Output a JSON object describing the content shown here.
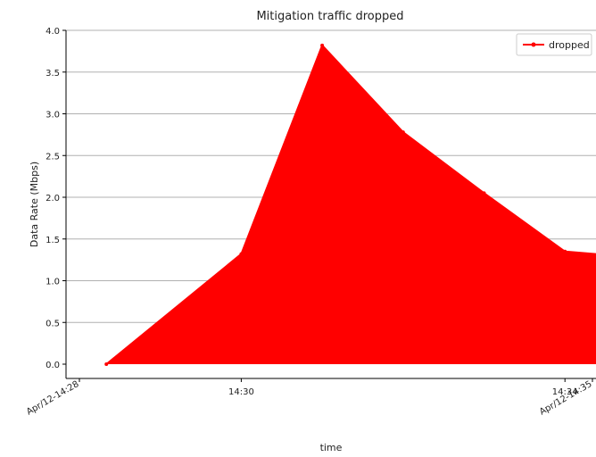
{
  "chart_data": {
    "type": "area",
    "title": "Mitigation traffic dropped",
    "xlabel": "time",
    "ylabel": "Data Rate (Mbps)",
    "ylim": [
      0,
      4.0
    ],
    "grid": "horizontal",
    "legend_position": "top-right",
    "x_range": [
      "Apr/12-14:28",
      "Apr/12-14:35"
    ],
    "x_ticks": [
      {
        "value": "Apr/12-14:28",
        "label": "Apr/12-14:28",
        "rotated": true
      },
      {
        "value": "Apr/12-14:30",
        "label": "14:30",
        "rotated": false
      },
      {
        "value": "Apr/12-14:34",
        "label": "14:34",
        "rotated": false
      },
      {
        "value": "Apr/12-14:35",
        "label": "Apr/12-14:35",
        "rotated": true
      }
    ],
    "y_ticks": [
      0.0,
      0.5,
      1.0,
      1.5,
      2.0,
      2.5,
      3.0,
      3.5,
      4.0
    ],
    "y_tick_labels": [
      "0.0",
      "0.5",
      "1.0",
      "1.5",
      "2.0",
      "2.5",
      "3.0",
      "3.5",
      "4.0"
    ],
    "series": [
      {
        "name": "dropped",
        "color": "#ff0000",
        "fill": true,
        "marker": "dot",
        "points": [
          {
            "x": "Apr/12-14:28:20",
            "y": 0.0
          },
          {
            "x": "Apr/12-14:30:00",
            "y": 1.32
          },
          {
            "x": "Apr/12-14:31:00",
            "y": 3.82
          },
          {
            "x": "Apr/12-14:32:00",
            "y": 2.78
          },
          {
            "x": "Apr/12-14:33:00",
            "y": 2.05
          },
          {
            "x": "Apr/12-14:34:00",
            "y": 1.35
          },
          {
            "x": "Apr/12-14:35:00",
            "y": 1.27
          }
        ]
      }
    ]
  }
}
